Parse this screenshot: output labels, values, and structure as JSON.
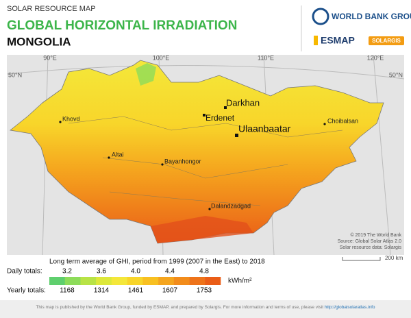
{
  "header": {
    "kicker": "SOLAR RESOURCE MAP",
    "title": "GLOBAL HORIZONTAL IRRADIATION",
    "country": "MONGOLIA"
  },
  "logos": {
    "world_bank": "WORLD BANK GROUP",
    "esmap": "ESMAP",
    "solargis": "SOLARGIS"
  },
  "map": {
    "graticule": {
      "lat_left": "50°N",
      "lat_right": "50°N",
      "lon": [
        "90°E",
        "100°E",
        "110°E",
        "120°E"
      ]
    },
    "cities": [
      "Darkhan",
      "Erdenet",
      "Ulaanbaatar",
      "Choibalsan",
      "Khovd",
      "Altai",
      "Bayanhongor",
      "Dalandzadgad"
    ],
    "credits": [
      "© 2019 The World Bank",
      "Source: Global Solar Atlas 2.0",
      "Solar resource data: Solargis"
    ],
    "scale": "200 km"
  },
  "legend": {
    "title": "Long term average of GHI, period from 1999 (2007 in the East) to 2018",
    "daily_label": "Daily totals:",
    "daily": [
      "3.2",
      "3.6",
      "4.0",
      "4.4",
      "4.8"
    ],
    "yearly_label": "Yearly totals:",
    "yearly": [
      "1168",
      "1314",
      "1461",
      "1607",
      "1753"
    ],
    "unit": "kWh/m²",
    "colors": [
      "#5fcf6e",
      "#8ddc5a",
      "#b8e346",
      "#dde83a",
      "#f4e73a",
      "#f8d52a",
      "#f8c021",
      "#f5a51e",
      "#f28c1b",
      "#ee731a",
      "#ea5d17"
    ]
  },
  "footer": {
    "text": "This map is published by the World Bank Group, funded by ESMAP, and prepared by Solargis. For more information and terms of use, please visit ",
    "link": "http://globalsolaratlas.info"
  }
}
